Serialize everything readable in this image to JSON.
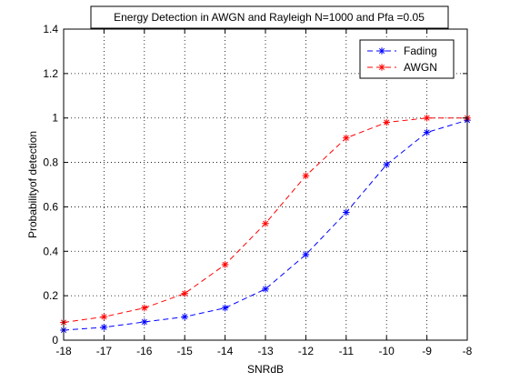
{
  "chart_data": {
    "type": "line",
    "title": "Energy Detection in AWGN and Rayleigh N=1000 and Pfa =0.05",
    "xlabel": "SNRdB",
    "ylabel": "Probabilityof detection",
    "xlim": [
      -18,
      -8
    ],
    "ylim": [
      0,
      1.4
    ],
    "xticks": [
      -18,
      -17,
      -16,
      -15,
      -14,
      -13,
      -12,
      -11,
      -10,
      -9,
      -8
    ],
    "yticks": [
      0,
      0.2,
      0.4,
      0.6,
      0.8,
      1,
      1.2,
      1.4
    ],
    "grid": true,
    "legend_position": "top-right",
    "x": [
      -18,
      -17,
      -16,
      -15,
      -14,
      -13,
      -12,
      -11,
      -10,
      -9,
      -8
    ],
    "series": [
      {
        "name": "Fading",
        "color": "#0000ff",
        "marker": "asterisk",
        "linestyle": "dashed",
        "values": [
          0.045,
          0.058,
          0.082,
          0.105,
          0.145,
          0.23,
          0.385,
          0.575,
          0.79,
          0.935,
          0.99
        ]
      },
      {
        "name": "AWGN",
        "color": "#ff0000",
        "marker": "asterisk",
        "linestyle": "dashed",
        "values": [
          0.08,
          0.105,
          0.145,
          0.21,
          0.34,
          0.525,
          0.74,
          0.91,
          0.98,
          1.0,
          1.0
        ]
      }
    ]
  }
}
